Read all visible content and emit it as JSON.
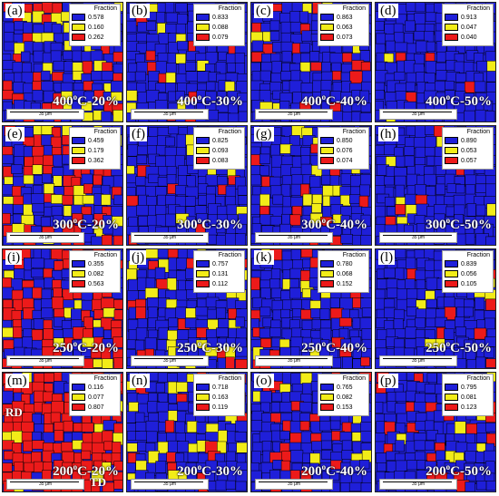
{
  "legend_header": "Fraction",
  "scale_label": "35 μm",
  "colors": {
    "blue": "#1f1fd9",
    "yellow": "#f2ec18",
    "red": "#ec1a1a",
    "boundary": "#000000"
  },
  "panels": [
    {
      "label": "(a)",
      "temp": "400",
      "strain": "-20%",
      "fractions": [
        "0.578",
        "0.160",
        "0.262"
      ]
    },
    {
      "label": "(b)",
      "temp": "400",
      "strain": "-30%",
      "fractions": [
        "0.833",
        "0.088",
        "0.079"
      ]
    },
    {
      "label": "(c)",
      "temp": "400",
      "strain": "-40%",
      "fractions": [
        "0.863",
        "0.063",
        "0.073"
      ]
    },
    {
      "label": "(d)",
      "temp": "400",
      "strain": "-50%",
      "fractions": [
        "0.913",
        "0.047",
        "0.040"
      ]
    },
    {
      "label": "(e)",
      "temp": "300",
      "strain": "-20%",
      "fractions": [
        "0.459",
        "0.179",
        "0.362"
      ]
    },
    {
      "label": "(f)",
      "temp": "300",
      "strain": "-30%",
      "fractions": [
        "0.825",
        "0.093",
        "0.083"
      ]
    },
    {
      "label": "(g)",
      "temp": "300",
      "strain": "-40%",
      "fractions": [
        "0.850",
        "0.076",
        "0.074"
      ]
    },
    {
      "label": "(h)",
      "temp": "300",
      "strain": "-50%",
      "fractions": [
        "0.890",
        "0.053",
        "0.057"
      ]
    },
    {
      "label": "(i)",
      "temp": "250",
      "strain": "-20%",
      "fractions": [
        "0.355",
        "0.082",
        "0.563"
      ]
    },
    {
      "label": "(j)",
      "temp": "250",
      "strain": "-30%",
      "fractions": [
        "0.757",
        "0.131",
        "0.112"
      ]
    },
    {
      "label": "(k)",
      "temp": "250",
      "strain": "-40%",
      "fractions": [
        "0.780",
        "0.068",
        "0.152"
      ]
    },
    {
      "label": "(l)",
      "temp": "250",
      "strain": "-50%",
      "fractions": [
        "0.839",
        "0.056",
        "0.105"
      ]
    },
    {
      "label": "(m)",
      "temp": "200",
      "strain": "-20%",
      "fractions": [
        "0.116",
        "0.077",
        "0.807"
      ]
    },
    {
      "label": "(n)",
      "temp": "200",
      "strain": "-30%",
      "fractions": [
        "0.718",
        "0.163",
        "0.119"
      ]
    },
    {
      "label": "(o)",
      "temp": "200",
      "strain": "-40%",
      "fractions": [
        "0.765",
        "0.082",
        "0.153"
      ]
    },
    {
      "label": "(p)",
      "temp": "200",
      "strain": "-50%",
      "fractions": [
        "0.795",
        "0.081",
        "0.123"
      ]
    }
  ],
  "direction_labels": {
    "rd": "RD",
    "td": "TD"
  }
}
